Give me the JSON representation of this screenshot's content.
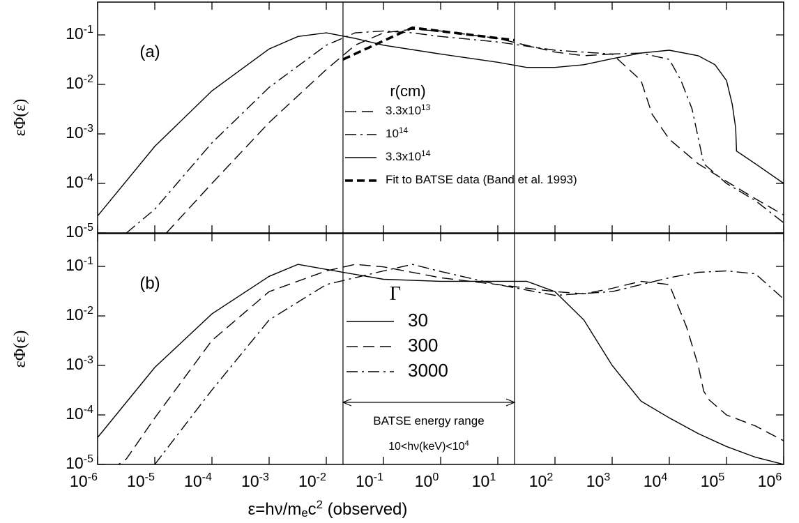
{
  "chart_data": [
    {
      "type": "line",
      "panel_label": "(a)",
      "y_label": "εΦ(ε)",
      "log_x": true,
      "log_y": true,
      "grid": false,
      "xlim": [
        1e-06,
        1000000.0
      ],
      "ylim": [
        1e-05,
        0.46
      ],
      "xticks": [
        1e-06,
        1e-05,
        0.0001,
        0.001,
        0.01,
        0.1,
        1,
        10,
        100,
        1000,
        10000,
        100000,
        1000000
      ],
      "yticks": [
        {
          "value": 1e-05,
          "label": "10^-5"
        },
        {
          "value": 0.0001,
          "label": "10^-4"
        },
        {
          "value": 0.001,
          "label": "10^-3"
        },
        {
          "value": 0.01,
          "label": "10^-2"
        },
        {
          "value": 0.1,
          "label": "10^-1"
        }
      ],
      "vlines": [
        0.0196,
        19.6
      ],
      "legend_title": "r(cm)",
      "series": [
        {
          "name": "3.3x10^13",
          "color": "#000000",
          "style": "dash",
          "x": [
            1.6e-05,
            0.0001,
            0.001,
            0.01,
            0.032,
            0.1,
            0.32,
            1,
            10,
            100,
            320,
            1000,
            3200,
            5000,
            10000.0,
            32000.0,
            100000.0,
            320000.0,
            1000000.0
          ],
          "values": [
            1e-05,
            0.0001,
            0.0017,
            0.02,
            0.062,
            0.11,
            0.13,
            0.12,
            0.085,
            0.045,
            0.038,
            0.041,
            0.012,
            0.0025,
            0.00078,
            0.00025,
            0.00011,
            4.9e-05,
            2.3e-05
          ]
        },
        {
          "name": "10^14",
          "color": "#000000",
          "style": "dashdot",
          "x": [
            3.2e-06,
            1e-05,
            0.0001,
            0.001,
            0.01,
            0.032,
            0.1,
            0.32,
            1,
            10,
            100,
            1000,
            3200,
            10000.0,
            16000.0,
            25000.0,
            40000.0,
            100000.0,
            320000.0,
            1000000.0
          ],
          "values": [
            1e-05,
            3e-05,
            0.00066,
            0.0087,
            0.062,
            0.11,
            0.12,
            0.11,
            0.093,
            0.072,
            0.049,
            0.041,
            0.043,
            0.032,
            0.012,
            0.0032,
            0.00025,
            0.0001,
            4.5e-05,
            1.6e-05
          ]
        },
        {
          "name": "3.3x10^14",
          "color": "#000000",
          "style": "solid",
          "x": [
            1e-06,
            1e-05,
            0.0001,
            0.001,
            0.0032,
            0.01,
            0.032,
            0.1,
            1,
            10,
            32,
            100,
            320,
            1000,
            3200,
            10000.0,
            32000.0,
            63000.0,
            100000.0,
            126000.0,
            145000.0,
            150000.0,
            320000.0,
            1000000.0
          ],
          "values": [
            2.2e-05,
            0.00056,
            0.0074,
            0.052,
            0.093,
            0.11,
            0.085,
            0.062,
            0.041,
            0.028,
            0.022,
            0.022,
            0.025,
            0.033,
            0.043,
            0.049,
            0.038,
            0.025,
            0.012,
            0.004,
            0.0013,
            0.00045,
            0.00025,
            0.0001
          ]
        },
        {
          "name": "Fit to BATSE data (Band et al. 1993)",
          "color": "#000000",
          "style": "fit",
          "x": [
            0.0196,
            0.32,
            19.6
          ],
          "values": [
            0.032,
            0.14,
            0.078
          ]
        }
      ]
    },
    {
      "type": "line",
      "panel_label": "(b)",
      "y_label": "εΦ(ε)",
      "x_label": "ε=hν/m_ec^2 (observed)",
      "log_x": true,
      "log_y": true,
      "grid": false,
      "xlim": [
        1e-06,
        1000000.0
      ],
      "ylim": [
        1e-05,
        0.46
      ],
      "xticks": [
        {
          "value": 1e-06,
          "label": "10^-6"
        },
        {
          "value": 1e-05,
          "label": "10^-5"
        },
        {
          "value": 0.0001,
          "label": "10^-4"
        },
        {
          "value": 0.001,
          "label": "10^-3"
        },
        {
          "value": 0.01,
          "label": "10^-2"
        },
        {
          "value": 0.1,
          "label": "10^-1"
        },
        {
          "value": 1,
          "label": "10^0"
        },
        {
          "value": 10,
          "label": "10^1"
        },
        {
          "value": 100,
          "label": "10^2"
        },
        {
          "value": 1000,
          "label": "10^3"
        },
        {
          "value": 10000,
          "label": "10^4"
        },
        {
          "value": 100000,
          "label": "10^5"
        },
        {
          "value": 1000000,
          "label": "10^6"
        }
      ],
      "yticks": [
        {
          "value": 1e-05,
          "label": "10^-5"
        },
        {
          "value": 0.0001,
          "label": "10^-4"
        },
        {
          "value": 0.001,
          "label": "10^-3"
        },
        {
          "value": 0.01,
          "label": "10^-2"
        },
        {
          "value": 0.1,
          "label": "10^-1"
        }
      ],
      "vlines": [
        0.0196,
        19.6
      ],
      "annotations": [
        "BATSE energy range",
        "10<hν(keV)<10^4"
      ],
      "legend_title": "Γ",
      "series": [
        {
          "name": "30",
          "color": "#000000",
          "style": "solid",
          "x": [
            1e-06,
            1e-05,
            0.0001,
            0.001,
            0.0032,
            0.01,
            0.1,
            1,
            10,
            32,
            100,
            320,
            1000,
            3200,
            10000.0,
            32000.0,
            100000.0,
            320000.0,
            1000000.0
          ],
          "values": [
            3.5e-05,
            0.00091,
            0.011,
            0.063,
            0.11,
            0.087,
            0.055,
            0.05,
            0.05,
            0.05,
            0.031,
            0.0083,
            0.001,
            0.00019,
            8.7e-05,
            4.2e-05,
            2.3e-05,
            1.4e-05,
            1e-05
          ]
        },
        {
          "name": "300",
          "color": "#000000",
          "style": "dash",
          "x": [
            1e-06,
            3.2e-06,
            1e-05,
            0.0001,
            0.001,
            0.01,
            0.032,
            0.1,
            1,
            10,
            100,
            320,
            1000,
            3200,
            10000.0,
            20000.0,
            32000.0,
            40000.0,
            50000.0,
            100000.0,
            320000.0,
            1000000.0
          ],
          "values": [
            5e-06,
            1.3e-05,
            8.7e-05,
            0.0032,
            0.031,
            0.081,
            0.11,
            0.098,
            0.059,
            0.043,
            0.031,
            0.028,
            0.036,
            0.05,
            0.043,
            0.006,
            0.001,
            0.0003,
            0.0002,
            0.0001,
            6e-05,
            3e-05
          ]
        },
        {
          "name": "3000",
          "color": "#000000",
          "style": "dashdot",
          "x": [
            1e-05,
            0.0001,
            0.001,
            0.01,
            0.1,
            0.32,
            1,
            10,
            100,
            1000,
            10000.0,
            32000.0,
            100000.0,
            320000.0,
            1000000.0
          ],
          "values": [
            1e-05,
            0.00032,
            0.0083,
            0.043,
            0.081,
            0.11,
            0.079,
            0.043,
            0.026,
            0.031,
            0.059,
            0.076,
            0.081,
            0.071,
            0.022
          ]
        }
      ]
    }
  ]
}
